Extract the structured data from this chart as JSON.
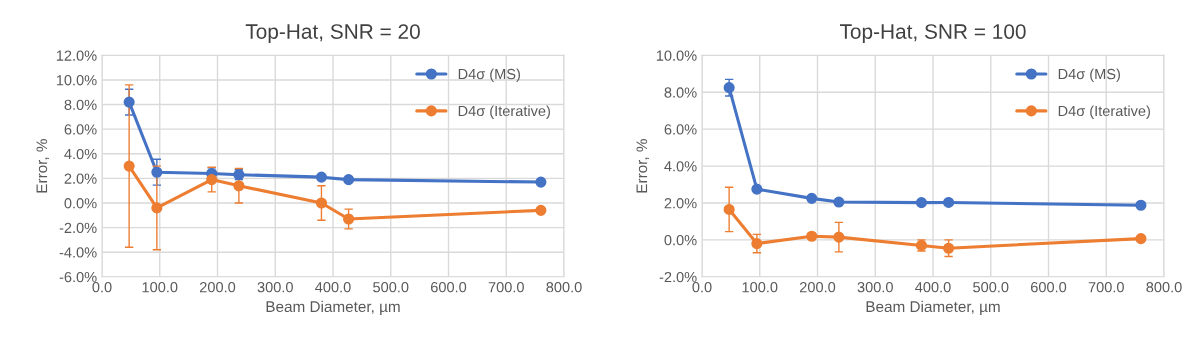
{
  "chart_data": [
    {
      "type": "line",
      "title": "Top-Hat, SNR = 20",
      "xlabel": "Beam Diameter, µm",
      "ylabel": "Error, %",
      "x": [
        47,
        95,
        190,
        237,
        380,
        427,
        760
      ],
      "series": [
        {
          "name": "D4σ (MS)",
          "color": "#4472c4",
          "values": [
            8.2,
            2.5,
            2.4,
            2.3,
            2.1,
            1.9,
            1.7
          ],
          "errors": [
            1.05,
            1.05,
            0.45,
            0.4,
            0.2,
            null,
            null
          ]
        },
        {
          "name": "D4σ (Iterative)",
          "color": "#ed7d31",
          "values": [
            3.0,
            -0.4,
            1.9,
            1.4,
            0.0,
            -1.3,
            -0.6
          ],
          "errors": [
            6.6,
            3.4,
            1.0,
            1.4,
            1.4,
            0.8,
            null
          ]
        }
      ],
      "xlim": [
        0,
        800
      ],
      "xticks": [
        {
          "value": 0,
          "label": "0.0"
        },
        {
          "value": 100,
          "label": "100.0"
        },
        {
          "value": 200,
          "label": "200.0"
        },
        {
          "value": 300,
          "label": "300.0"
        },
        {
          "value": 400,
          "label": "400.0"
        },
        {
          "value": 500,
          "label": "500.0"
        },
        {
          "value": 600,
          "label": "600.0"
        },
        {
          "value": 700,
          "label": "700.0"
        },
        {
          "value": 800,
          "label": "800.0"
        }
      ],
      "ylim": [
        -6,
        12
      ],
      "yticks": [
        {
          "value": -6,
          "label": "-6.0%"
        },
        {
          "value": -4,
          "label": "-4.0%"
        },
        {
          "value": -2,
          "label": "-2.0%"
        },
        {
          "value": 0,
          "label": "0.0%"
        },
        {
          "value": 2,
          "label": "2.0%"
        },
        {
          "value": 4,
          "label": "4.0%"
        },
        {
          "value": 6,
          "label": "6.0%"
        },
        {
          "value": 8,
          "label": "8.0%"
        },
        {
          "value": 10,
          "label": "10.0%"
        },
        {
          "value": 12,
          "label": "12.0%"
        }
      ],
      "grid": true,
      "legend": "top right",
      "marker": "circle",
      "line_style": "solid"
    },
    {
      "type": "line",
      "title": "Top-Hat, SNR = 100",
      "xlabel": "Beam Diameter, µm",
      "ylabel": "Error, %",
      "x": [
        47,
        95,
        190,
        237,
        380,
        427,
        760
      ],
      "series": [
        {
          "name": "D4σ (MS)",
          "color": "#4472c4",
          "values": [
            8.25,
            2.75,
            2.25,
            2.05,
            2.02,
            2.03,
            1.88
          ],
          "errors": [
            0.45,
            null,
            null,
            null,
            null,
            null,
            null
          ]
        },
        {
          "name": "D4σ (Iterative)",
          "color": "#ed7d31",
          "values": [
            1.65,
            -0.2,
            0.2,
            0.15,
            -0.3,
            -0.45,
            0.07
          ],
          "errors": [
            1.2,
            0.5,
            0.15,
            0.8,
            0.3,
            0.45,
            null
          ]
        }
      ],
      "xlim": [
        0,
        800
      ],
      "xticks": [
        {
          "value": 0,
          "label": "0.0"
        },
        {
          "value": 100,
          "label": "100.0"
        },
        {
          "value": 200,
          "label": "200.0"
        },
        {
          "value": 300,
          "label": "300.0"
        },
        {
          "value": 400,
          "label": "400.0"
        },
        {
          "value": 500,
          "label": "500.0"
        },
        {
          "value": 600,
          "label": "600.0"
        },
        {
          "value": 700,
          "label": "700.0"
        },
        {
          "value": 800,
          "label": "800.0"
        }
      ],
      "ylim": [
        -2,
        10
      ],
      "yticks": [
        {
          "value": -2,
          "label": "-2.0%"
        },
        {
          "value": 0,
          "label": "0.0%"
        },
        {
          "value": 2,
          "label": "2.0%"
        },
        {
          "value": 4,
          "label": "4.0%"
        },
        {
          "value": 6,
          "label": "6.0%"
        },
        {
          "value": 8,
          "label": "8.0%"
        },
        {
          "value": 10,
          "label": "10.0%"
        }
      ],
      "grid": true,
      "legend": "top right",
      "marker": "circle",
      "line_style": "solid"
    }
  ]
}
